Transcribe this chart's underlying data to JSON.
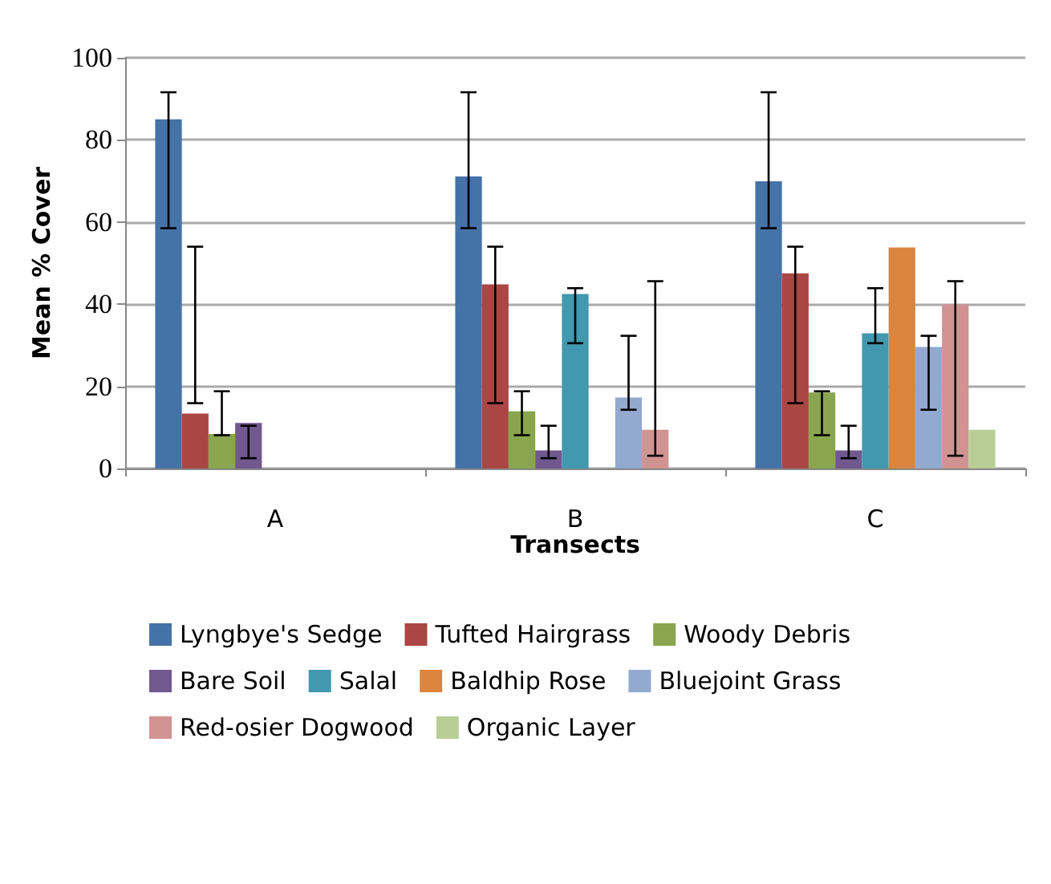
{
  "chart_data": {
    "type": "bar",
    "xlabel": "Transects",
    "ylabel": "Mean % Cover",
    "categories": [
      "A",
      "B",
      "C"
    ],
    "ylim": [
      0,
      100
    ],
    "yticks": [
      0,
      20,
      40,
      60,
      80,
      100
    ],
    "grid": "y",
    "legend": "bottom",
    "series": [
      {
        "name": "Lyngbye's Sedge",
        "color": "#4572a7",
        "values": [
          85,
          71.1,
          69.9
        ],
        "errors": [
          [
            58.5,
            91.6
          ],
          [
            58.5,
            91.6
          ],
          [
            58.5,
            91.6
          ]
        ]
      },
      {
        "name": "Tufted Hairgrass",
        "color": "#aa4643",
        "values": [
          13.4,
          44.8,
          47.5
        ],
        "errors": [
          [
            15.9,
            54
          ],
          [
            15.9,
            54
          ],
          [
            15.9,
            54
          ]
        ]
      },
      {
        "name": "Woody Debris",
        "color": "#89a54e",
        "values": [
          8.4,
          13.9,
          18.5
        ],
        "errors": [
          [
            8.1,
            18.8
          ],
          [
            8.1,
            18.8
          ],
          [
            8.1,
            18.8
          ]
        ]
      },
      {
        "name": "Bare Soil",
        "color": "#71588f",
        "values": [
          11.1,
          4.4,
          4.4
        ],
        "errors": [
          [
            2.5,
            10.4
          ],
          [
            2.5,
            10.4
          ],
          [
            2.5,
            10.4
          ]
        ]
      },
      {
        "name": "Salal",
        "color": "#4198af",
        "values": [
          null,
          42.5,
          32.9
        ],
        "errors": [
          null,
          [
            30.5,
            43.9
          ],
          [
            30.5,
            43.9
          ]
        ]
      },
      {
        "name": "Baldhip Rose",
        "color": "#db843d",
        "values": [
          null,
          null,
          53.8
        ],
        "errors": [
          null,
          null,
          null
        ]
      },
      {
        "name": "Bluejoint Grass",
        "color": "#93a9cf",
        "values": [
          null,
          17.3,
          29.6
        ],
        "errors": [
          null,
          [
            14.3,
            32.3
          ],
          [
            14.3,
            32.3
          ]
        ]
      },
      {
        "name": "Red-osier Dogwood",
        "color": "#d19392",
        "values": [
          null,
          9.4,
          40
        ],
        "errors": [
          null,
          [
            3.1,
            45.6
          ],
          [
            3.1,
            45.6
          ]
        ]
      },
      {
        "name": "Organic Layer",
        "color": "#b9cd96",
        "values": [
          null,
          null,
          9.4
        ],
        "errors": [
          null,
          null,
          null
        ]
      }
    ]
  }
}
